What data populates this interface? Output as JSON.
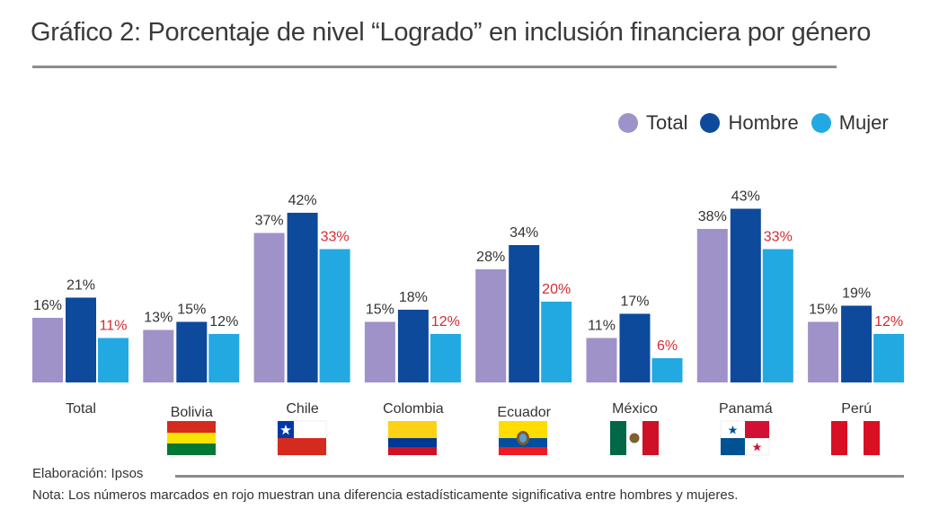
{
  "title": "Gráfico 2: Porcentaje de nivel “Logrado” en inclusión financiera por género",
  "footer": {
    "credit": "Elaboración: Ipsos",
    "note": "Nota: Los números marcados en rojo muestran una diferencia estadísticamente significativa entre hombres y mujeres."
  },
  "colors": {
    "total": "#9f92c8",
    "hombre": "#0d4a9b",
    "mujer": "#22a9e2",
    "significant": "#d42a32",
    "normal_label": "#333333"
  },
  "flag_icons": [
    "bolivia-flag-icon",
    "chile-flag-icon",
    "colombia-flag-icon",
    "ecuador-flag-icon",
    "mexico-flag-icon",
    "panama-flag-icon",
    "peru-flag-icon"
  ],
  "chart_data": {
    "type": "bar",
    "categories": [
      "Total",
      "Bolivia",
      "Chile",
      "Colombia",
      "Ecuador",
      "México",
      "Panamá",
      "Perú"
    ],
    "series": [
      {
        "name": "Total",
        "values": [
          16,
          13,
          37,
          15,
          28,
          11,
          38,
          15
        ],
        "labels": [
          "16%",
          "13%",
          "37%",
          "15%",
          "28%",
          "11%",
          "38%",
          "15%"
        ],
        "significant": [
          false,
          false,
          false,
          false,
          false,
          false,
          false,
          false
        ]
      },
      {
        "name": "Hombre",
        "values": [
          21,
          15,
          42,
          18,
          34,
          17,
          43,
          19
        ],
        "labels": [
          "21%",
          "15%",
          "42%",
          "18%",
          "34%",
          "17%",
          "43%",
          "19%"
        ],
        "significant": [
          false,
          false,
          false,
          false,
          false,
          false,
          false,
          false
        ]
      },
      {
        "name": "Mujer",
        "values": [
          11,
          12,
          33,
          12,
          20,
          6,
          33,
          12
        ],
        "labels": [
          "11%",
          "12%",
          "33%",
          "12%",
          "20%",
          "6%",
          "33%",
          "12%"
        ],
        "significant": [
          true,
          false,
          true,
          true,
          true,
          true,
          true,
          true
        ]
      }
    ],
    "legend_position": "top-right",
    "grid": false,
    "ylim": [
      0,
      45
    ]
  }
}
